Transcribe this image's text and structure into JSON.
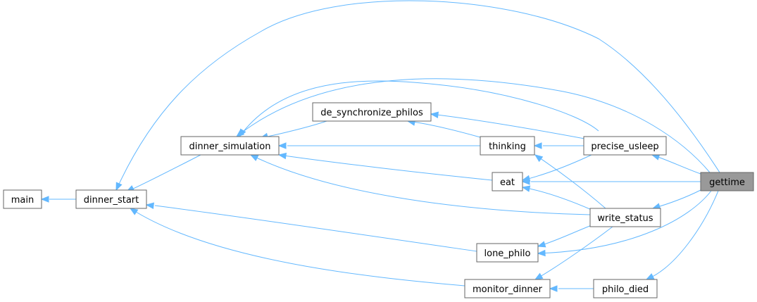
{
  "graph": {
    "title": "",
    "colors": {
      "edge": "#63b8ff",
      "node_border": "#666666",
      "node_fill": "#ffffff",
      "highlight_fill": "#999999"
    },
    "nodes": {
      "main": "main",
      "dinner_start": "dinner_start",
      "dinner_simulation": "dinner_simulation",
      "de_synchronize_philos": "de_synchronize_philos",
      "thinking": "thinking",
      "eat": "eat",
      "lone_philo": "lone_philo",
      "monitor_dinner": "monitor_dinner",
      "precise_usleep": "precise_usleep",
      "write_status": "write_status",
      "philo_died": "philo_died",
      "gettime": "gettime"
    },
    "highlighted": "gettime",
    "edges": [
      [
        "dinner_start",
        "main"
      ],
      [
        "dinner_simulation",
        "dinner_start"
      ],
      [
        "lone_philo",
        "dinner_start"
      ],
      [
        "monitor_dinner",
        "dinner_start"
      ],
      [
        "de_synchronize_philos",
        "dinner_simulation"
      ],
      [
        "thinking",
        "dinner_simulation"
      ],
      [
        "eat",
        "dinner_simulation"
      ],
      [
        "thinking",
        "de_synchronize_philos"
      ],
      [
        "precise_usleep",
        "de_synchronize_philos"
      ],
      [
        "precise_usleep",
        "dinner_simulation"
      ],
      [
        "write_status",
        "dinner_simulation"
      ],
      [
        "precise_usleep",
        "thinking"
      ],
      [
        "precise_usleep",
        "eat"
      ],
      [
        "write_status",
        "thinking"
      ],
      [
        "write_status",
        "eat"
      ],
      [
        "write_status",
        "lone_philo"
      ],
      [
        "write_status",
        "monitor_dinner"
      ],
      [
        "philo_died",
        "monitor_dinner"
      ],
      [
        "gettime",
        "dinner_start"
      ],
      [
        "gettime",
        "dinner_simulation"
      ],
      [
        "gettime",
        "precise_usleep"
      ],
      [
        "gettime",
        "eat"
      ],
      [
        "gettime",
        "write_status"
      ],
      [
        "gettime",
        "lone_philo"
      ],
      [
        "gettime",
        "philo_died"
      ]
    ]
  }
}
